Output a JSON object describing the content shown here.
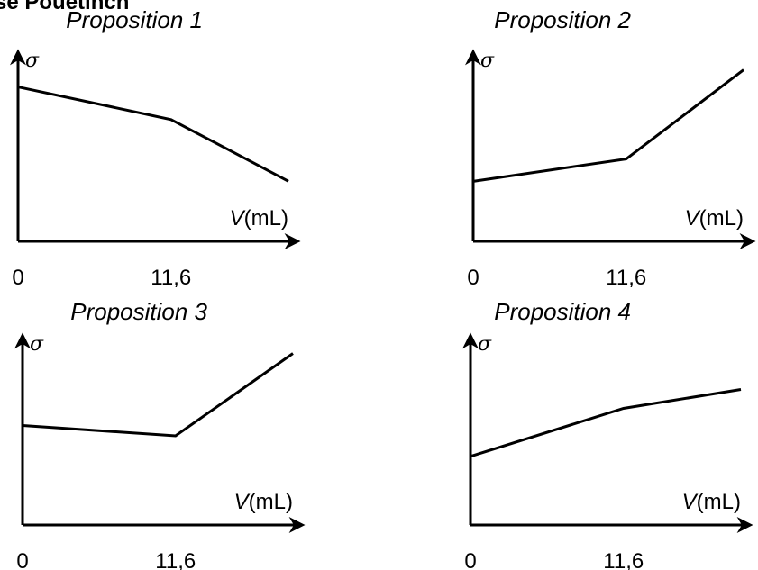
{
  "header_fragment": "se Pouétinch",
  "chart_data": [
    {
      "type": "line",
      "title": "Proposition 1",
      "ylabel": "σ",
      "xlabel_var": "V",
      "xlabel_unit": "(mL)",
      "x_ticks": [
        "0",
        "11,6"
      ],
      "series": [
        {
          "x": [
            0,
            11.6,
            20.5
          ],
          "y": [
            0.9,
            0.71,
            0.35
          ]
        }
      ],
      "xlim": [
        0,
        20.5
      ],
      "ylim": [
        0,
        1.05
      ]
    },
    {
      "type": "line",
      "title": "Proposition 2",
      "ylabel": "σ",
      "xlabel_var": "V",
      "xlabel_unit": "(mL)",
      "x_ticks": [
        "0",
        "11,6"
      ],
      "series": [
        {
          "x": [
            0,
            11.6,
            20.5
          ],
          "y": [
            0.35,
            0.48,
            1.0
          ]
        }
      ],
      "xlim": [
        0,
        20.5
      ],
      "ylim": [
        0,
        1.05
      ]
    },
    {
      "type": "line",
      "title": "Proposition 3",
      "ylabel": "σ",
      "xlabel_var": "V",
      "xlabel_unit": "(mL)",
      "x_ticks": [
        "0",
        "11,6"
      ],
      "series": [
        {
          "x": [
            0,
            11.6,
            20.5
          ],
          "y": [
            0.58,
            0.52,
            1.0
          ]
        }
      ],
      "xlim": [
        0,
        20.5
      ],
      "ylim": [
        0,
        1.05
      ]
    },
    {
      "type": "line",
      "title": "Proposition 4",
      "ylabel": "σ",
      "xlabel_var": "V",
      "xlabel_unit": "(mL)",
      "x_ticks": [
        "0",
        "11,6"
      ],
      "series": [
        {
          "x": [
            0,
            11.6,
            20.5
          ],
          "y": [
            0.4,
            0.68,
            0.79
          ]
        }
      ],
      "xlim": [
        0,
        20.5
      ],
      "ylim": [
        0,
        1.05
      ]
    }
  ]
}
